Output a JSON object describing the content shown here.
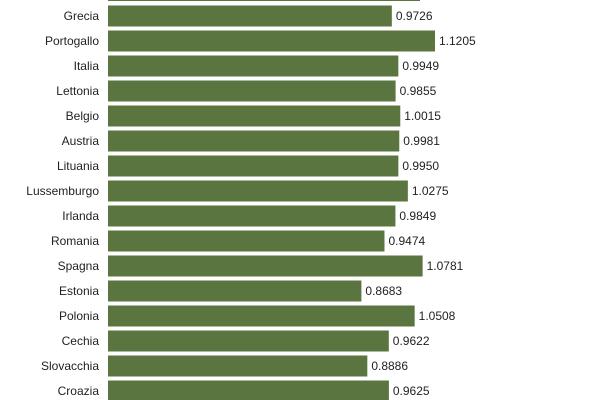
{
  "chart_data": {
    "type": "bar",
    "orientation": "horizontal",
    "bar_color": "#5b7540",
    "categories": [
      "Grecia",
      "Portogallo",
      "Italia",
      "Lettonia",
      "Belgio",
      "Austria",
      "Lituania",
      "Lussemburgo",
      "Irlanda",
      "Romania",
      "Spagna",
      "Estonia",
      "Polonia",
      "Cechia",
      "Slovacchia",
      "Croazia"
    ],
    "values": [
      0.9726,
      1.1205,
      0.9949,
      0.9855,
      1.0015,
      0.9981,
      0.995,
      1.0275,
      0.9849,
      0.9474,
      1.0781,
      0.8683,
      1.0508,
      0.9622,
      0.8886,
      0.9625
    ],
    "value_labels": [
      "0.9726",
      "1.1205",
      "0.9949",
      "0.9855",
      "1.0015",
      "0.9981",
      "0.9950",
      "1.0275",
      "0.9849",
      "0.9474",
      "1.0781",
      "0.8683",
      "1.0508",
      "0.9622",
      "0.8886",
      "0.9625"
    ],
    "xlim": [
      0,
      1.1205
    ],
    "grid": false,
    "legend": "none",
    "title": "",
    "xlabel": "",
    "ylabel": ""
  }
}
